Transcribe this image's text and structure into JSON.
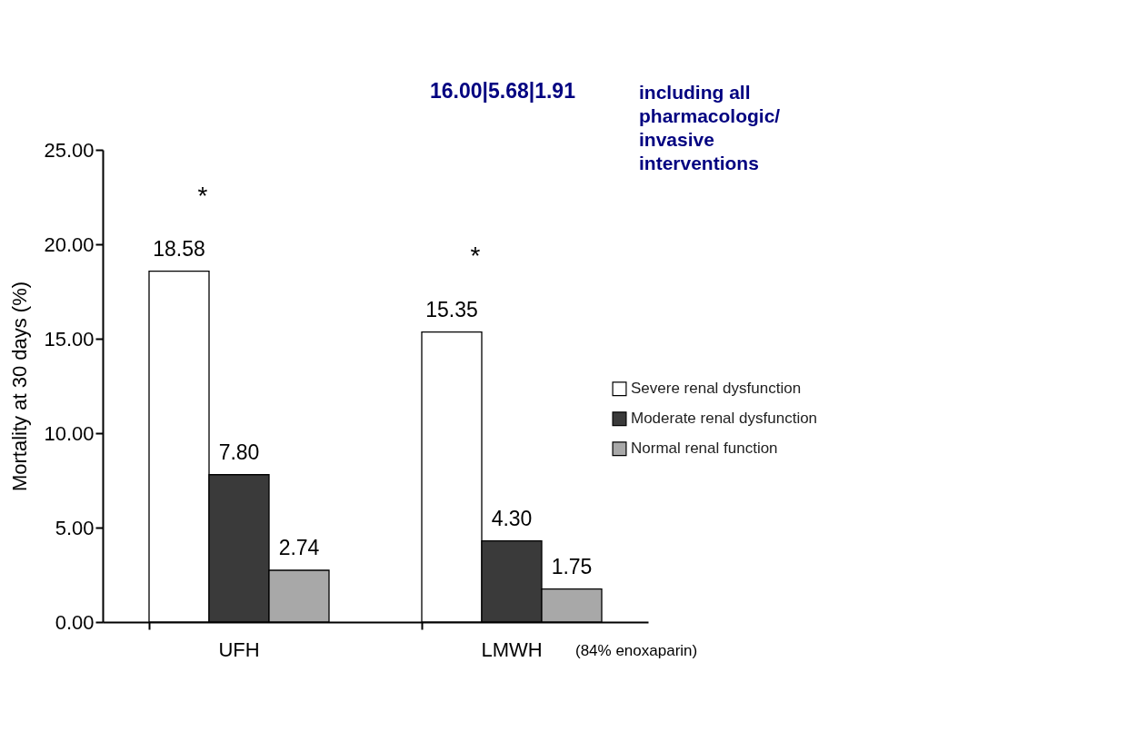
{
  "chart_data": {
    "type": "bar",
    "categories": [
      "UFH",
      "LMWH"
    ],
    "series": [
      {
        "name": "Severe renal dysfunction",
        "color": "#ffffff",
        "values": [
          18.58,
          15.35
        ],
        "value_labels": [
          "18.58",
          "15.35"
        ]
      },
      {
        "name": "Moderate renal dysfunction",
        "color": "#3a3a3a",
        "values": [
          7.8,
          4.3
        ],
        "value_labels": [
          "7.80",
          "4.30"
        ]
      },
      {
        "name": "Normal renal function",
        "color": "#a8a8a8",
        "values": [
          2.74,
          1.75
        ],
        "value_labels": [
          "2.74",
          "1.75"
        ]
      }
    ],
    "ylabel": "Mortality at 30 days (%)",
    "ylim": [
      0,
      25
    ],
    "yticks": [
      {
        "value": 0,
        "label": "0.00"
      },
      {
        "value": 5,
        "label": "5.00"
      },
      {
        "value": 10,
        "label": "10.00"
      },
      {
        "value": 15,
        "label": "15.00"
      },
      {
        "value": 20,
        "label": "20.00"
      },
      {
        "value": 25,
        "label": "25.00"
      }
    ],
    "legend": "right",
    "annotations": [
      "*",
      "*",
      "16.00|5.68|1.91",
      "including all pharmacologic/ invasive interventions",
      "(84% enoxaparin)"
    ]
  }
}
